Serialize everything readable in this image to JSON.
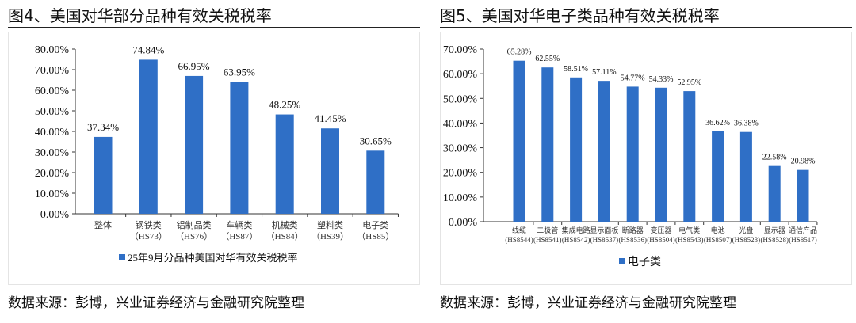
{
  "chart_data": [
    {
      "type": "bar",
      "title": "图4、美国对华部分品种有效关税税率",
      "categories": [
        "整体",
        "钢铁类\n（HS73）",
        "铝制品类\n（HS76）",
        "车辆类\n（HS87）",
        "机械类\n（HS84）",
        "塑料类\n（HS39）",
        "电子类\n（HS85）"
      ],
      "series": [
        {
          "name": "25年9月分品种美国对华有效关税税率",
          "values": [
            37.34,
            74.84,
            66.95,
            63.95,
            48.25,
            41.45,
            30.65
          ]
        }
      ],
      "data_labels": [
        "37.34%",
        "74.84%",
        "66.95%",
        "63.95%",
        "48.25%",
        "41.45%",
        "30.65%"
      ],
      "yticks": [
        "0.00%",
        "10.00%",
        "20.00%",
        "30.00%",
        "40.00%",
        "50.00%",
        "60.00%",
        "70.00%",
        "80.00%"
      ],
      "ylim": [
        0,
        80
      ],
      "grid": false,
      "legend": "bottom",
      "color": "#2F6FC6",
      "source": "数据来源：彭博，兴业证券经济与金融研究院整理"
    },
    {
      "type": "bar",
      "title": "图5、美国对华电子类品种有效关税税率",
      "categories": [
        "线缆\n(HS8544)",
        "二极管\n(HS8541)",
        "集成电路\n(HS8542)",
        "显示面板\n(HS8537)",
        "断路器\n(HS8536)",
        "变压器\n(HS8504)",
        "电气类\n(HS8543)",
        "电池\n(HS8507)",
        "光盘\n(HS8523)",
        "显示器\n(HS8528)",
        "通信产品\n(HS8517)"
      ],
      "series": [
        {
          "name": "电子类",
          "values": [
            65.28,
            62.55,
            58.51,
            57.11,
            54.77,
            54.33,
            52.95,
            36.62,
            36.38,
            22.58,
            20.98
          ]
        }
      ],
      "data_labels": [
        "65.28%",
        "62.55%",
        "58.51%",
        "57.11%",
        "54.77%",
        "54.33%",
        "52.95%",
        "36.62%",
        "36.38%",
        "22.58%",
        "20.98%"
      ],
      "yticks": [
        "0.00%",
        "10.00%",
        "20.00%",
        "30.00%",
        "40.00%",
        "50.00%",
        "60.00%",
        "70.00%"
      ],
      "ylim": [
        0,
        70
      ],
      "grid": false,
      "legend": "bottom",
      "color": "#2F6FC6",
      "source": "数据来源：彭博，兴业证券经济与金融研究院整理"
    }
  ]
}
